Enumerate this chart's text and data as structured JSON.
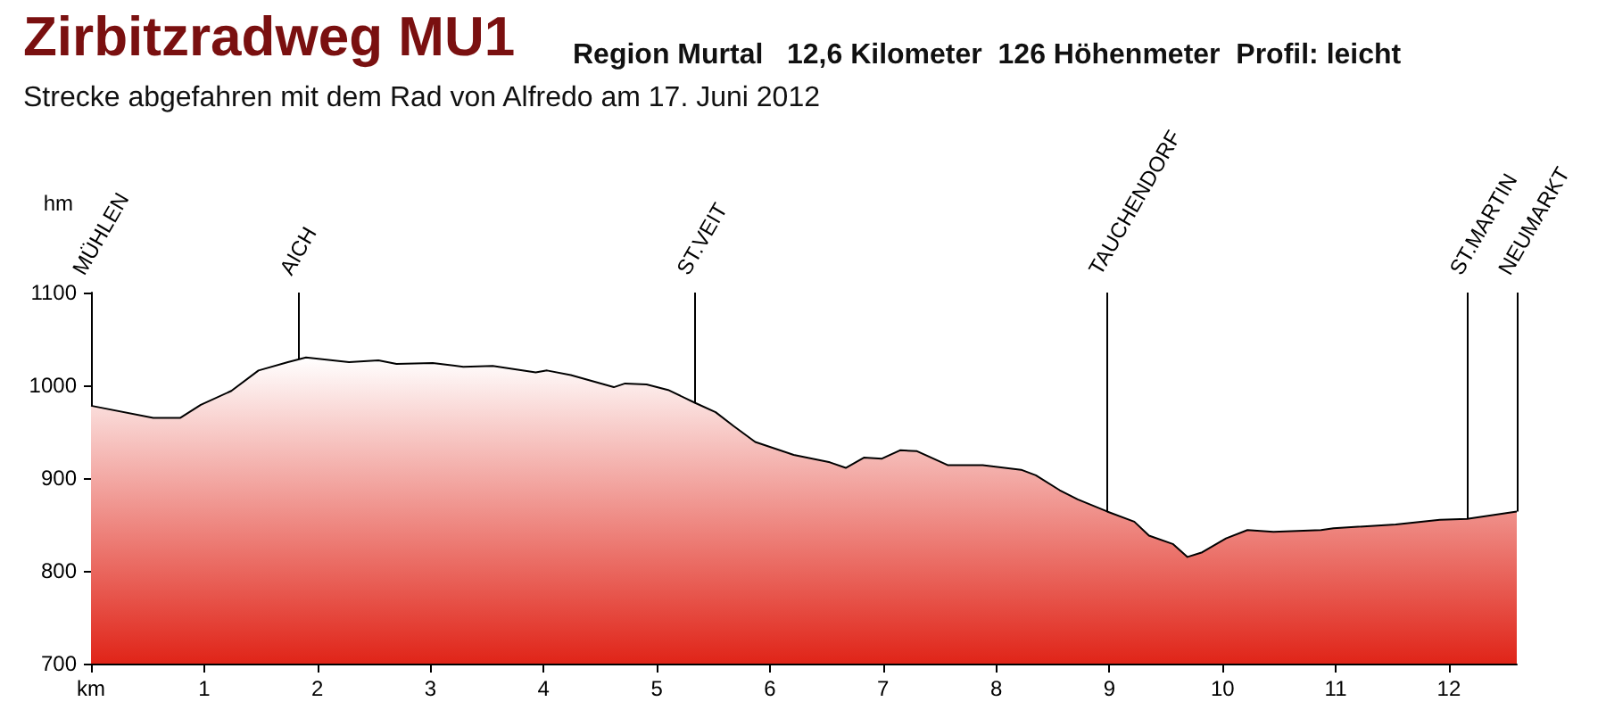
{
  "chart_data": {
    "type": "area",
    "title": "Zirbitzradweg MU1",
    "subtitle": "Region Murtal   12,6 Kilometer  126 Höhenmeter  Profil: leicht",
    "annotations": [
      "Strecke abgefahren mit dem Rad von Alfredo am 17. Juni 2012"
    ],
    "ylabel": "hm",
    "x": [
      0,
      0.55,
      0.79,
      0.97,
      1.24,
      1.48,
      1.74,
      1.9,
      2.28,
      2.54,
      2.7,
      3.02,
      3.29,
      3.55,
      3.93,
      4.03,
      4.24,
      4.62,
      4.72,
      4.91,
      5.1,
      5.34,
      5.52,
      5.68,
      5.87,
      6.21,
      6.53,
      6.67,
      6.83,
      6.99,
      7.15,
      7.3,
      7.57,
      7.88,
      8.22,
      8.35,
      8.56,
      8.72,
      8.98,
      9.22,
      9.35,
      9.56,
      9.69,
      9.82,
      10.03,
      10.22,
      10.45,
      10.87,
      10.98,
      11.53,
      11.92,
      12.16,
      12.6
    ],
    "series": [
      {
        "color": "#e02418",
        "values": [
          978,
          965,
          965,
          979,
          994,
          1016,
          1025,
          1030,
          1025,
          1027,
          1023,
          1024,
          1020,
          1021,
          1014,
          1016,
          1011,
          998,
          1002,
          1001,
          995,
          981,
          971,
          956,
          939,
          925,
          917,
          911,
          922,
          921,
          930,
          929,
          914,
          914,
          909,
          903,
          887,
          877,
          864,
          853,
          838,
          829,
          815,
          820,
          835,
          844,
          842,
          844,
          846,
          850,
          855,
          856,
          864
        ]
      }
    ],
    "xlim": [
      0,
      12.6
    ],
    "xticks": [
      {
        "value": 0,
        "label": "km"
      },
      1,
      2,
      3,
      4,
      5,
      6,
      7,
      8,
      9,
      10,
      11,
      12
    ],
    "ylim": [
      700,
      1100
    ],
    "yticks": [
      700,
      800,
      900,
      1000,
      1100
    ],
    "ref_lines": [
      {
        "axis": "x",
        "value": 0,
        "label": "MÜHLEN"
      },
      {
        "axis": "x",
        "value": 1.83,
        "label": "AICH"
      },
      {
        "axis": "x",
        "value": 5.34,
        "label": "ST.VEIT"
      },
      {
        "axis": "x",
        "value": 8.98,
        "label": "TAUCHENDORF"
      },
      {
        "axis": "x",
        "value": 12.17,
        "label": "ST.MARTIN"
      },
      {
        "axis": "x",
        "value": 12.6,
        "label": "NEUMARKT"
      }
    ],
    "grid": false
  }
}
